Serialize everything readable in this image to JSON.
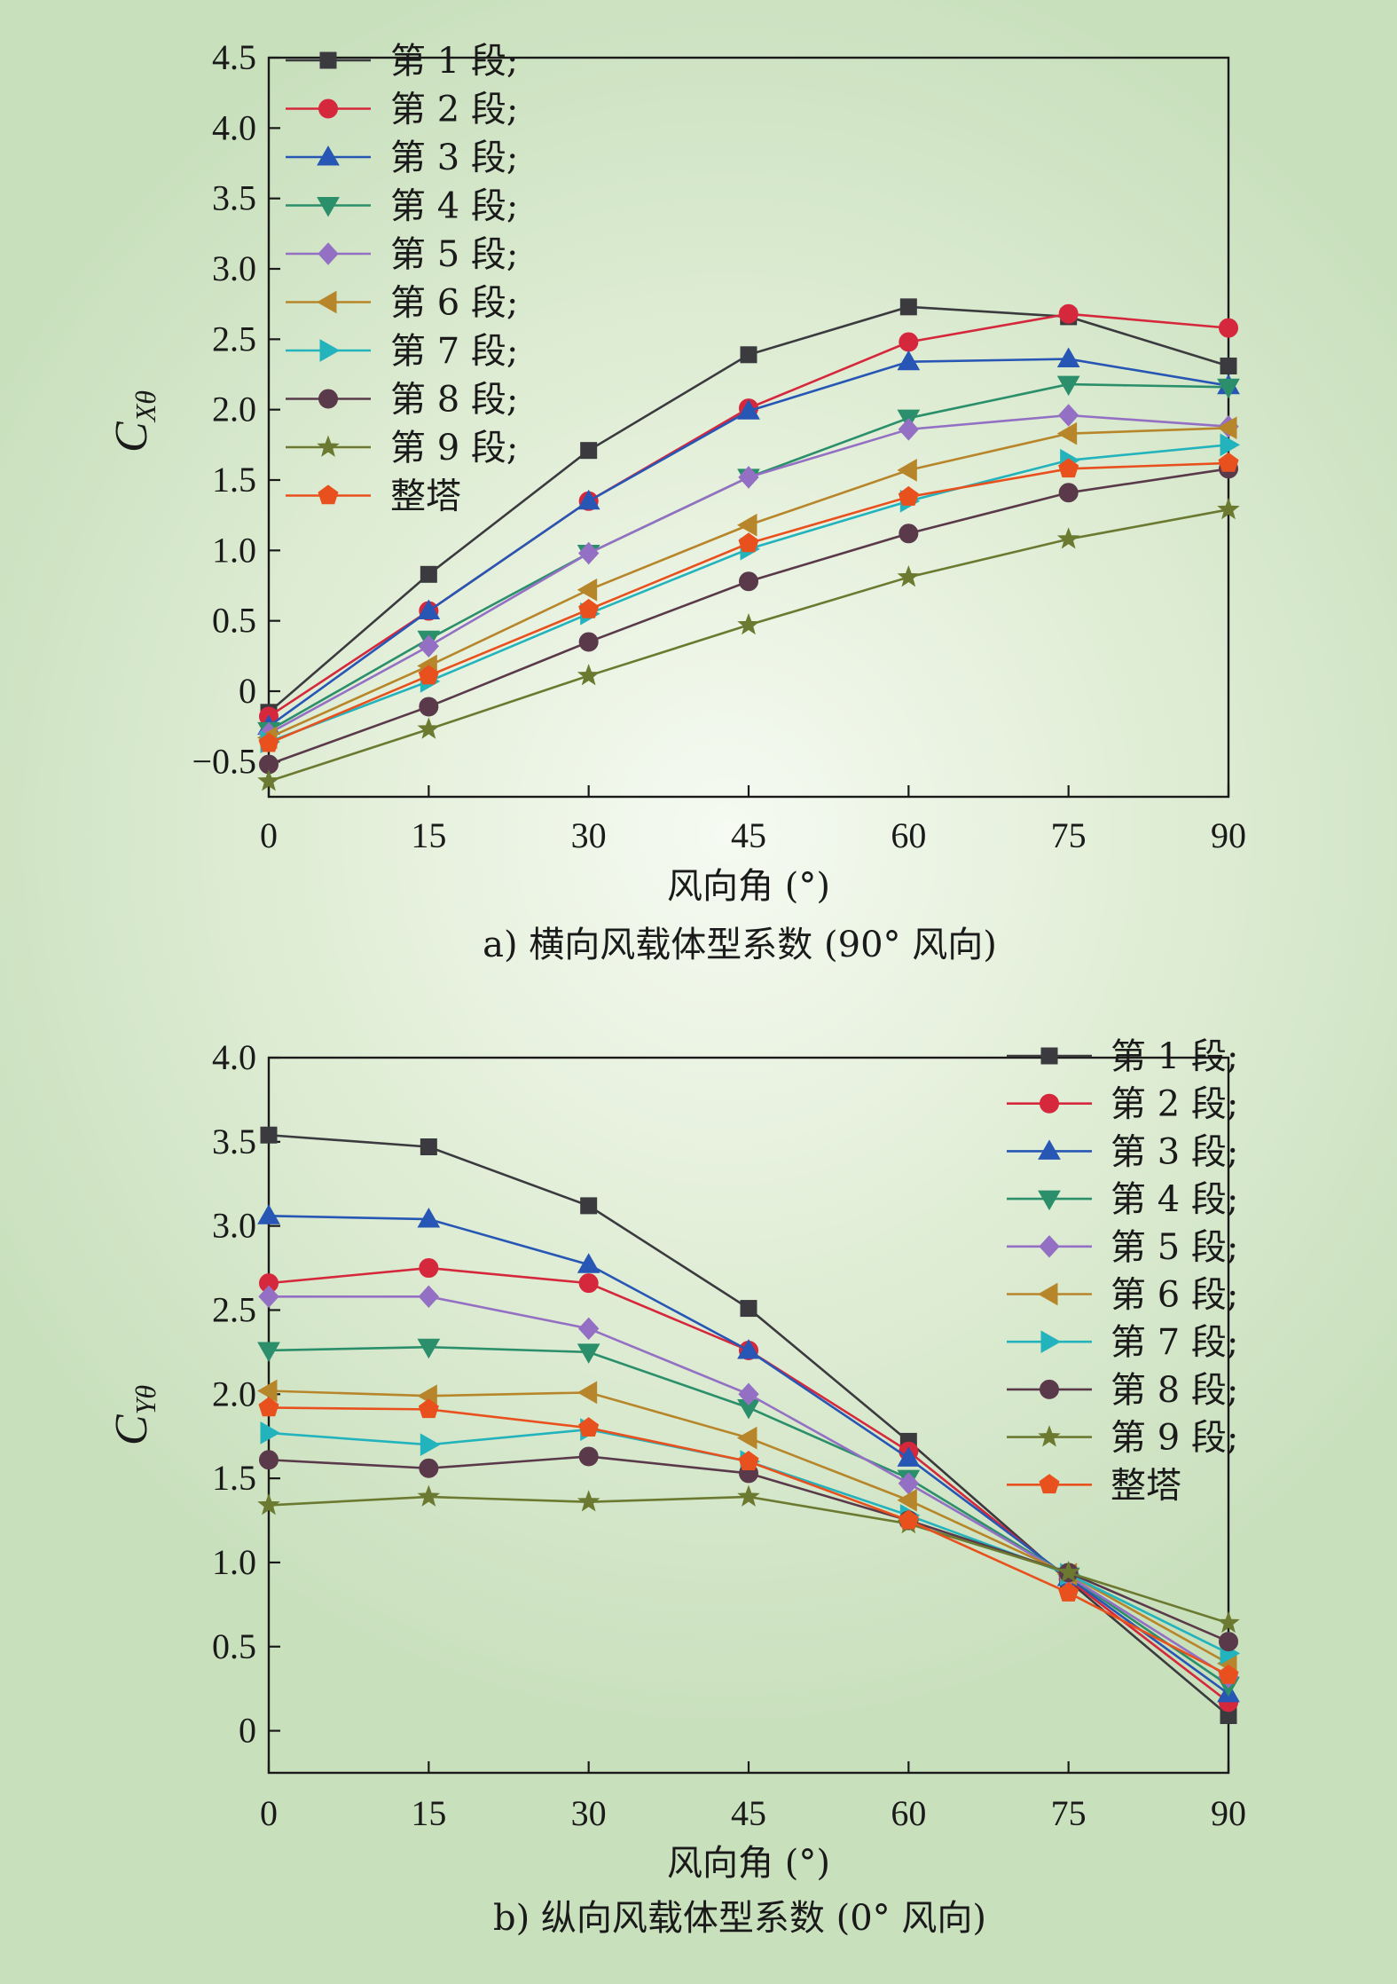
{
  "chart_data": [
    {
      "type": "line",
      "caption": "a) 横向风载体型系数 (90° 风向)",
      "xlabel": "风向角 (°)",
      "ylabel": "C",
      "ylabel_sub": "Xθ",
      "x": [
        0,
        15,
        30,
        45,
        60,
        75,
        90
      ],
      "xlim": [
        0,
        90
      ],
      "ylim": [
        -0.75,
        4.5
      ],
      "yticks": [
        -0.5,
        0,
        0.5,
        1.0,
        1.5,
        2.0,
        2.5,
        3.0,
        3.5,
        4.0,
        4.5
      ],
      "ytick_labels": [
        "−0.5",
        "0",
        "0.5",
        "1.0",
        "1.5",
        "2.0",
        "2.5",
        "3.0",
        "3.5",
        "4.0",
        "4.5"
      ],
      "legend_position": "top-left",
      "series": [
        {
          "name": "第 1 段;",
          "color": "#3a3a3f",
          "marker": "square",
          "values": [
            -0.15,
            0.83,
            1.71,
            2.39,
            2.73,
            2.66,
            2.31
          ]
        },
        {
          "name": "第 2 段;",
          "color": "#d6283c",
          "marker": "circle",
          "values": [
            -0.18,
            0.57,
            1.35,
            2.01,
            2.48,
            2.68,
            2.58
          ]
        },
        {
          "name": "第 3 段;",
          "color": "#2756b5",
          "marker": "triangle-up",
          "values": [
            -0.25,
            0.57,
            1.35,
            1.99,
            2.34,
            2.36,
            2.17
          ]
        },
        {
          "name": "第 4 段;",
          "color": "#2a8f6a",
          "marker": "triangle-down",
          "values": [
            -0.28,
            0.37,
            0.98,
            1.52,
            1.94,
            2.18,
            2.16
          ]
        },
        {
          "name": "第 5 段;",
          "color": "#9470c4",
          "marker": "diamond",
          "values": [
            -0.3,
            0.32,
            0.98,
            1.52,
            1.86,
            1.96,
            1.88
          ]
        },
        {
          "name": "第 6 段;",
          "color": "#b8862a",
          "marker": "triangle-left",
          "values": [
            -0.33,
            0.18,
            0.72,
            1.18,
            1.57,
            1.83,
            1.87
          ]
        },
        {
          "name": "第 7 段;",
          "color": "#23b3bd",
          "marker": "triangle-right",
          "values": [
            -0.36,
            0.07,
            0.55,
            1.01,
            1.35,
            1.64,
            1.75
          ]
        },
        {
          "name": "第 8 段;",
          "color": "#5a3a4a",
          "marker": "circle",
          "values": [
            -0.52,
            -0.11,
            0.35,
            0.78,
            1.12,
            1.41,
            1.58
          ]
        },
        {
          "name": "第 9 段;",
          "color": "#6b7a30",
          "marker": "star",
          "values": [
            -0.64,
            -0.27,
            0.11,
            0.47,
            0.81,
            1.08,
            1.29
          ]
        },
        {
          "name": "整塔",
          "color": "#e8501e",
          "marker": "pentagon",
          "values": [
            -0.37,
            0.11,
            0.58,
            1.05,
            1.38,
            1.58,
            1.62
          ]
        }
      ]
    },
    {
      "type": "line",
      "caption": "b) 纵向风载体型系数 (0° 风向)",
      "xlabel": "风向角 (°)",
      "ylabel": "C",
      "ylabel_sub": "Yθ",
      "x": [
        0,
        15,
        30,
        45,
        60,
        75,
        90
      ],
      "xlim": [
        0,
        90
      ],
      "ylim": [
        -0.25,
        4.0
      ],
      "yticks": [
        0,
        0.5,
        1.0,
        1.5,
        2.0,
        2.5,
        3.0,
        3.5,
        4.0
      ],
      "ytick_labels": [
        "0",
        "0.5",
        "1.0",
        "1.5",
        "2.0",
        "2.5",
        "3.0",
        "3.5",
        "4.0"
      ],
      "legend_position": "top-right",
      "series": [
        {
          "name": "第 1 段;",
          "color": "#3a3a3f",
          "marker": "square",
          "values": [
            3.54,
            3.47,
            3.12,
            2.51,
            1.72,
            0.89,
            0.09
          ]
        },
        {
          "name": "第 2 段;",
          "color": "#d6283c",
          "marker": "circle",
          "values": [
            2.66,
            2.75,
            2.66,
            2.26,
            1.66,
            0.9,
            0.17
          ]
        },
        {
          "name": "第 3 段;",
          "color": "#2756b5",
          "marker": "triangle-up",
          "values": [
            3.06,
            3.04,
            2.77,
            2.26,
            1.62,
            0.91,
            0.22
          ]
        },
        {
          "name": "第 4 段;",
          "color": "#2a8f6a",
          "marker": "triangle-down",
          "values": [
            2.26,
            2.28,
            2.25,
            1.92,
            1.5,
            0.92,
            0.27
          ]
        },
        {
          "name": "第 5 段;",
          "color": "#9470c4",
          "marker": "diamond",
          "values": [
            2.58,
            2.58,
            2.39,
            2.0,
            1.47,
            0.92,
            0.32
          ]
        },
        {
          "name": "第 6 段;",
          "color": "#b8862a",
          "marker": "triangle-left",
          "values": [
            2.02,
            1.99,
            2.01,
            1.74,
            1.37,
            0.93,
            0.4
          ]
        },
        {
          "name": "第 7 段;",
          "color": "#23b3bd",
          "marker": "triangle-right",
          "values": [
            1.77,
            1.7,
            1.79,
            1.6,
            1.28,
            0.93,
            0.46
          ]
        },
        {
          "name": "第 8 段;",
          "color": "#5a3a4a",
          "marker": "circle",
          "values": [
            1.61,
            1.56,
            1.63,
            1.53,
            1.25,
            0.94,
            0.53
          ]
        },
        {
          "name": "第 9 段;",
          "color": "#6b7a30",
          "marker": "star",
          "values": [
            1.34,
            1.39,
            1.36,
            1.39,
            1.23,
            0.94,
            0.64
          ]
        },
        {
          "name": "整塔",
          "color": "#e8501e",
          "marker": "pentagon",
          "values": [
            1.92,
            1.91,
            1.8,
            1.6,
            1.25,
            0.82,
            0.33
          ]
        }
      ]
    }
  ]
}
